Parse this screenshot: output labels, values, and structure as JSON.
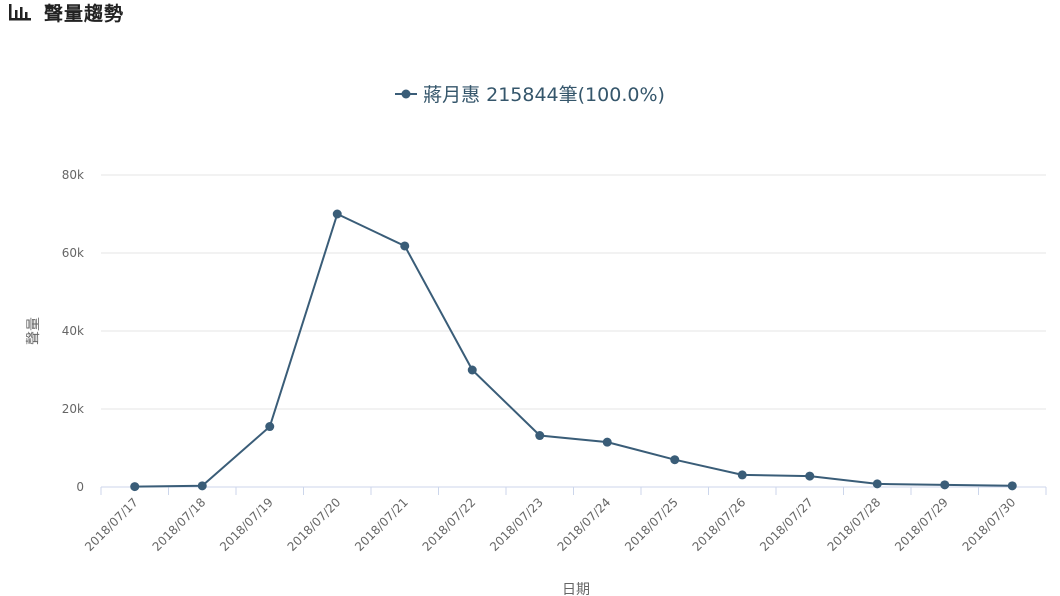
{
  "header": {
    "title": "聲量趨勢",
    "icon": "bar-chart-icon"
  },
  "chart_data": {
    "type": "line",
    "legend": "蔣月惠 215844筆(100.0%)",
    "xlabel": "日期",
    "ylabel": "聲量",
    "ylim": [
      0,
      80000
    ],
    "yticks": [
      "0",
      "20k",
      "40k",
      "60k",
      "80k"
    ],
    "ytick_values": [
      0,
      20000,
      40000,
      60000,
      80000
    ],
    "grid": true,
    "legend_position": "top",
    "color": "#3a5d78",
    "categories": [
      "2018/07/17",
      "2018/07/18",
      "2018/07/19",
      "2018/07/20",
      "2018/07/21",
      "2018/07/22",
      "2018/07/23",
      "2018/07/24",
      "2018/07/25",
      "2018/07/26",
      "2018/07/27",
      "2018/07/28",
      "2018/07/29",
      "2018/07/30"
    ],
    "series": [
      {
        "name": "蔣月惠",
        "values": [
          100,
          300,
          15500,
          70000,
          61800,
          30000,
          13200,
          11500,
          7000,
          3100,
          2800,
          800,
          550,
          300
        ]
      }
    ]
  }
}
